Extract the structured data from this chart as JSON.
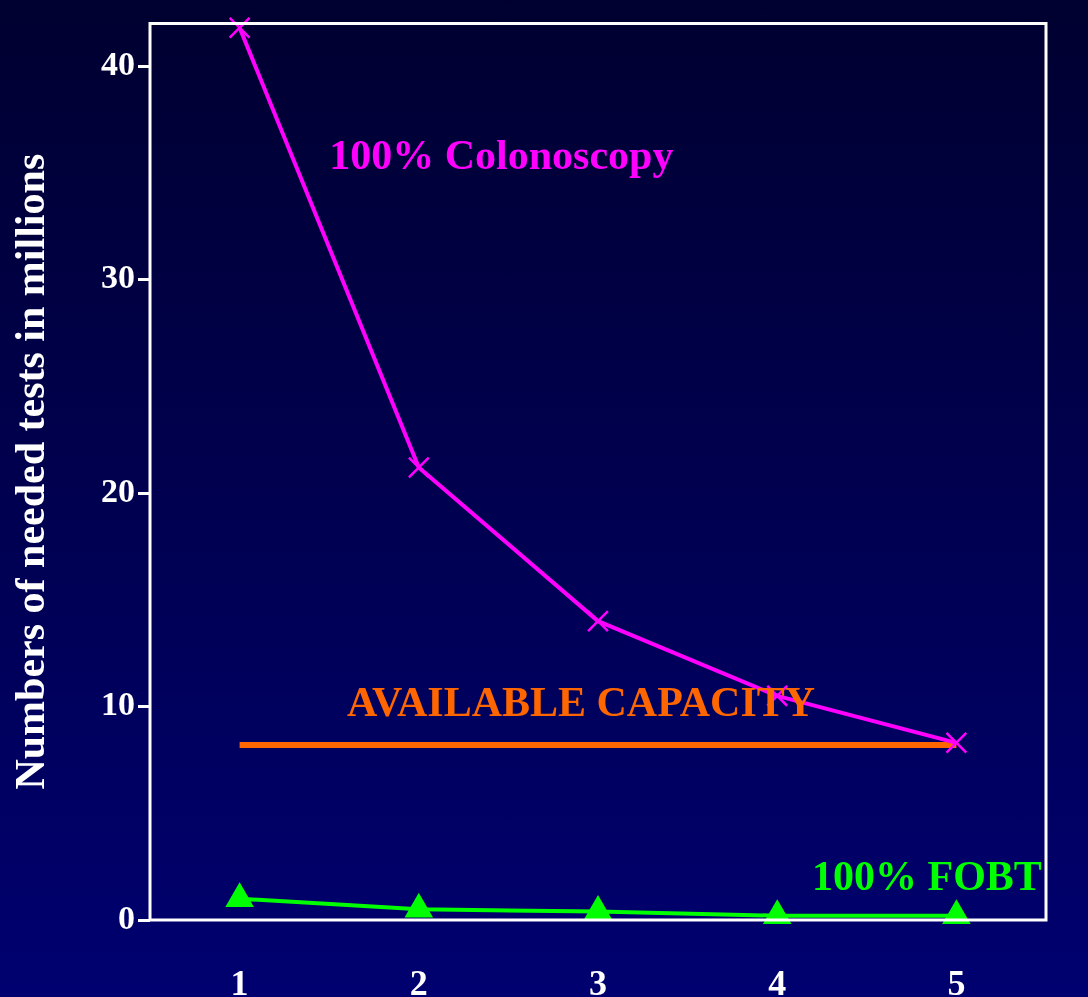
{
  "chart_data": {
    "type": "line",
    "ylabel": "Numbers of needed tests in millions",
    "categories": [
      "1",
      "2",
      "3",
      "4",
      "5"
    ],
    "series": [
      {
        "name": "100% Colonoscopy",
        "color": "#ff00ff",
        "marker": "cross",
        "values": [
          41.8,
          21.2,
          14.0,
          10.5,
          8.3
        ]
      },
      {
        "name": "AVAILABLE CAPACITY",
        "color": "#ff6600",
        "marker": "none",
        "values": [
          8.2,
          8.2,
          8.2,
          8.2,
          8.2
        ]
      },
      {
        "name": "100% FOBT",
        "color": "#00ff00",
        "marker": "triangle",
        "values": [
          1.0,
          0.5,
          0.4,
          0.2,
          0.2
        ]
      }
    ],
    "ylim": [
      0,
      42
    ],
    "yticks": [
      0,
      10,
      20,
      30,
      40
    ],
    "grid": false,
    "legend": false
  }
}
